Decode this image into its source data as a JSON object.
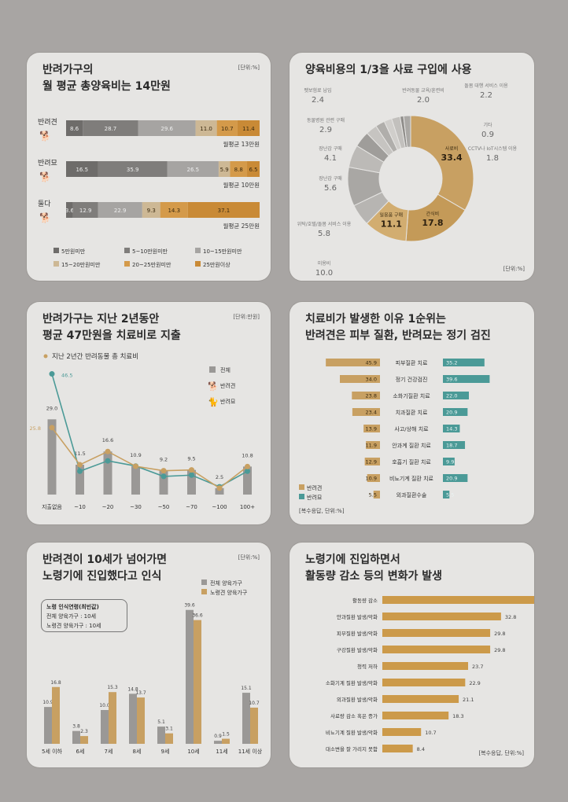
{
  "colors": {
    "c5": "#6e6c6a",
    "c10": "#7f7d7b",
    "c15": "#a6a4a2",
    "c20": "#cdb895",
    "c25": "#d49a4a",
    "c25p": "#c98a36",
    "gold": "#c8a062",
    "teal": "#4b9a97",
    "grey": "#9a9896",
    "dark": "#7a7876",
    "bar": "#cc9a4a"
  },
  "p1": {
    "title1": "반려가구의",
    "title2": "월 평균 총양육비는 14만원",
    "unit": "[단위:%]",
    "chart_data": {
      "type": "bar",
      "stacked": true,
      "horizontal": true,
      "categories": [
        "반려견",
        "반려묘",
        "둘다"
      ],
      "series": [
        {
          "name": "5만원미만",
          "values": [
            8.6,
            16.5,
            3.6
          ]
        },
        {
          "name": "5~10만원미만",
          "values": [
            28.7,
            35.9,
            12.9
          ]
        },
        {
          "name": "10~15만원미만",
          "values": [
            29.6,
            26.5,
            22.9
          ]
        },
        {
          "name": "15~20만원미만",
          "values": [
            11.0,
            5.9,
            9.3
          ]
        },
        {
          "name": "20~25만원미만",
          "values": [
            10.7,
            8.8,
            14.3
          ]
        },
        {
          "name": "25만원이상",
          "values": [
            11.4,
            6.5,
            37.1
          ]
        }
      ],
      "notes": [
        "월평균 13만원",
        "월평균 10만원",
        "월평균 25만원"
      ]
    }
  },
  "p2": {
    "title": "양육비용의 1/3을 사료 구입에 사용",
    "unit": "[단위:%]",
    "chart_data": {
      "type": "pie",
      "donut": true,
      "labels": [
        "사료비",
        "간식비",
        "일용품 구매",
        "장난감 구매",
        "미용비",
        "위탁/호텔/돌봄 서비스 이용",
        "장난감 구매",
        "동물병원 관련 구매",
        "펫보험료 납입",
        "반려동물 교육/훈련비",
        "돌봄 대행 서비스 이용",
        "기타",
        "CCTV나 IoT시스템 이용"
      ],
      "values": [
        33.4,
        17.8,
        11.1,
        5.6,
        10.0,
        5.8,
        4.1,
        2.9,
        2.4,
        2.0,
        2.2,
        0.9,
        1.8
      ]
    }
  },
  "p3": {
    "title1": "반려가구는 지난 2년동안",
    "title2": "평균 47만원을 치료비로 지출",
    "unit": "[단위:만원]",
    "subtitle": "지난 2년간 반려동물 총 치료비",
    "legend": [
      "전체",
      "반려견",
      "반려묘"
    ],
    "chart_data": {
      "type": "bar",
      "categories": [
        "지출없음",
        "~10",
        "~20",
        "~30",
        "~50",
        "~70",
        "~100",
        "100+"
      ],
      "series": [
        {
          "name": "전체",
          "values": [
            29.0,
            11.5,
            16.6,
            10.9,
            9.2,
            9.5,
            2.5,
            10.8
          ]
        },
        {
          "name": "반려견",
          "values": [
            25.8,
            11.5,
            16.6,
            10.9,
            9.2,
            9.5,
            2.5,
            10.8
          ]
        },
        {
          "name": "반려묘",
          "values": [
            46.5,
            9.0,
            13.0,
            11.0,
            7.0,
            7.5,
            3.0,
            9.0
          ]
        }
      ],
      "labels_all": [
        "29.0",
        "11.5",
        "16.6",
        "10.9",
        "9.2",
        "9.5",
        "2.5",
        "10.8"
      ],
      "label_cat": "46.5",
      "label_dog": "25.8"
    }
  },
  "p4": {
    "title1": "치료비가 발생한 이유 1순위는",
    "title2": "반려견은 피부 질환, 반려묘는 정기 검진",
    "legend": [
      "반려견",
      "반려묘"
    ],
    "note": "[복수응답, 단위:%]",
    "chart_data": {
      "type": "bar",
      "horizontal": true,
      "categories": [
        "피부질환 치료",
        "정기 건강검진",
        "소화기질환 치료",
        "치과질환 치료",
        "사고/상해 치료",
        "안과계 질환 치료",
        "호흡기 질환 치료",
        "비뇨기계 질환 치료",
        "외과질환수술"
      ],
      "series": [
        {
          "name": "반려견",
          "values": [
            45.9,
            34.0,
            23.8,
            23.4,
            13.9,
            11.9,
            12.9,
            10.9,
            5.5
          ]
        },
        {
          "name": "반려묘",
          "values": [
            35.2,
            39.6,
            22.0,
            20.9,
            14.3,
            18.7,
            9.9,
            20.9,
            5.5
          ]
        }
      ]
    }
  },
  "p5": {
    "title1": "반려견이 10세가 넘어가면",
    "title2": "노령기에 진입했다고 인식",
    "unit": "[단위:%]",
    "legend": [
      "전체 양육가구",
      "노령견 양육가구"
    ],
    "box": {
      "title": "노령 인식연령(최빈값)",
      "line1": "전체 양육가구 : 10세",
      "line2": "노령견 양육가구 : 10세"
    },
    "chart_data": {
      "type": "bar",
      "categories": [
        "5세 이하",
        "6세",
        "7세",
        "8세",
        "9세",
        "10세",
        "11세",
        "11세 이상"
      ],
      "series": [
        {
          "name": "전체 양육가구",
          "values": [
            10.9,
            3.8,
            10.0,
            14.8,
            5.1,
            39.6,
            0.9,
            15.1
          ]
        },
        {
          "name": "노령견 양육가구",
          "values": [
            16.8,
            2.3,
            15.3,
            13.7,
            3.1,
            36.6,
            1.5,
            10.7
          ]
        }
      ]
    }
  },
  "p6": {
    "title1": "노령기에 진입하면서",
    "title2": "활동량 감소 등의 변화가 발생",
    "note": "[복수응답, 단위:%]",
    "chart_data": {
      "type": "bar",
      "horizontal": true,
      "categories": [
        "활동량 감소",
        "안과질환 발생/악화",
        "피부질환 발생/악화",
        "구강질환 발생/악화",
        "청력 저하",
        "소화기계 질환 발생/악화",
        "외과질환 발생/악화",
        "사료량 감소 혹은 증가",
        "비뇨기계 질환 발생/악화",
        "대소변을 잘 가리지 못함"
      ],
      "values": [
        51.1,
        32.8,
        29.8,
        29.8,
        23.7,
        22.9,
        21.1,
        18.3,
        10.7,
        8.4
      ]
    }
  }
}
